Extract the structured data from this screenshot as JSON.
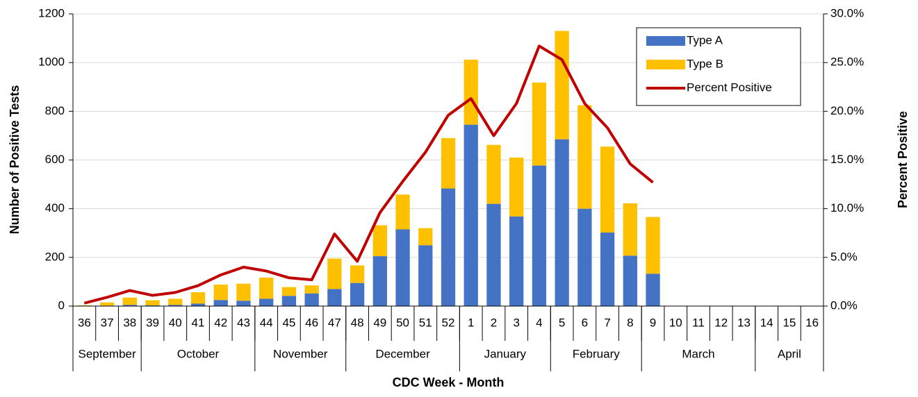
{
  "chart_data": {
    "type": "bar",
    "stacked": true,
    "x_label": "CDC Week - Month",
    "y_label": "Number of Positive Tests",
    "y2_label": "Percent Positive",
    "categories": [
      "36",
      "37",
      "38",
      "39",
      "40",
      "41",
      "42",
      "43",
      "44",
      "45",
      "46",
      "47",
      "48",
      "49",
      "50",
      "51",
      "52",
      "1",
      "2",
      "3",
      "4",
      "5",
      "6",
      "7",
      "8",
      "9",
      "10",
      "11",
      "12",
      "13",
      "14",
      "15",
      "16"
    ],
    "months": [
      "September",
      "September",
      "September",
      "October",
      "October",
      "October",
      "October",
      "October",
      "November",
      "November",
      "November",
      "November",
      "December",
      "December",
      "December",
      "December",
      "December",
      "January",
      "January",
      "January",
      "January",
      "February",
      "February",
      "February",
      "February",
      "March",
      "March",
      "March",
      "March",
      "March",
      "April",
      "April",
      "April"
    ],
    "series": [
      {
        "name": "Type A",
        "type": "bar",
        "color": "#4472c4",
        "values": [
          0,
          2,
          5,
          3,
          5,
          10,
          25,
          22,
          30,
          42,
          52,
          70,
          95,
          205,
          315,
          250,
          483,
          745,
          420,
          368,
          577,
          685,
          400,
          302,
          207,
          133,
          null,
          null,
          null,
          null,
          null,
          null,
          null
        ]
      },
      {
        "name": "Type B",
        "type": "bar",
        "color": "#ffc000",
        "values": [
          3,
          13,
          30,
          21,
          25,
          47,
          63,
          70,
          87,
          36,
          33,
          125,
          72,
          127,
          143,
          70,
          207,
          267,
          242,
          242,
          341,
          445,
          425,
          353,
          215,
          233,
          null,
          null,
          null,
          null,
          null,
          null,
          null
        ]
      },
      {
        "name": "Percent Positive",
        "type": "line",
        "axis": "y2",
        "color": "#c00000",
        "values": [
          0.3,
          0.9,
          1.6,
          1.1,
          1.4,
          2.1,
          3.2,
          4.0,
          3.6,
          2.9,
          2.7,
          7.4,
          4.6,
          9.6,
          12.8,
          15.8,
          19.6,
          21.3,
          17.5,
          20.8,
          26.7,
          25.3,
          20.8,
          18.3,
          14.6,
          12.7,
          null,
          null,
          null,
          null,
          null,
          null,
          null
        ]
      }
    ],
    "ylim": [
      0,
      1200
    ],
    "yticks": [
      0,
      200,
      400,
      600,
      800,
      1000,
      1200
    ],
    "y2lim": [
      0,
      30
    ],
    "y2ticks": [
      {
        "value": 0,
        "label": "0.0%"
      },
      {
        "value": 5,
        "label": "5.0%"
      },
      {
        "value": 10,
        "label": "10.0%"
      },
      {
        "value": 15,
        "label": "15.0%"
      },
      {
        "value": 20,
        "label": "20.0%"
      },
      {
        "value": 25,
        "label": "25.0%"
      },
      {
        "value": 30,
        "label": "30.0%"
      }
    ],
    "grid": true,
    "legend": "top-right"
  }
}
